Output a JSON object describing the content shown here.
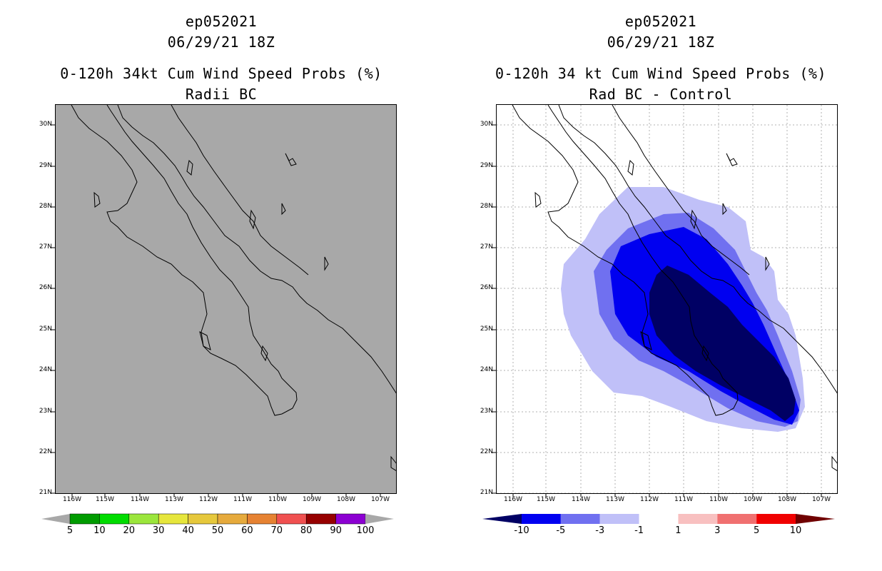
{
  "left_panel": {
    "storm_id": "ep052021",
    "datetime": "06/29/21 18Z",
    "title": "0-120h 34kt Cum Wind Speed Probs (%)",
    "subtitle": "Radii BC",
    "background_color": "#a8a8a8",
    "colorbar": {
      "labels": [
        "5",
        "10",
        "20",
        "30",
        "40",
        "50",
        "60",
        "70",
        "80",
        "90",
        "100"
      ],
      "colors": [
        "#009b00",
        "#00dc00",
        "#9be63c",
        "#e6e63c",
        "#e6c83c",
        "#e6aa3c",
        "#e68232",
        "#f05050",
        "#960000",
        "#8c00d2"
      ]
    }
  },
  "right_panel": {
    "storm_id": "ep052021",
    "datetime": "06/29/21 18Z",
    "title": "0-120h 34 kt Cum Wind Speed Probs (%)",
    "subtitle": "Rad BC - Control",
    "colorbar": {
      "labels": [
        "-10",
        "-5",
        "-3",
        "-1",
        "1",
        "3",
        "5",
        "10"
      ],
      "colors": [
        "#000064",
        "#0000f0",
        "#7070f0",
        "#c0c0f8",
        "#ffffff",
        "#f8c0c0",
        "#f07070",
        "#f00000",
        "#700000"
      ]
    }
  },
  "axes": {
    "lat_labels": [
      "30N",
      "29N",
      "28N",
      "27N",
      "26N",
      "25N",
      "24N",
      "23N",
      "22N",
      "21N"
    ],
    "lon_labels": [
      "116W",
      "115W",
      "114W",
      "113W",
      "112W",
      "111W",
      "110W",
      "109W",
      "108W",
      "107W"
    ]
  }
}
